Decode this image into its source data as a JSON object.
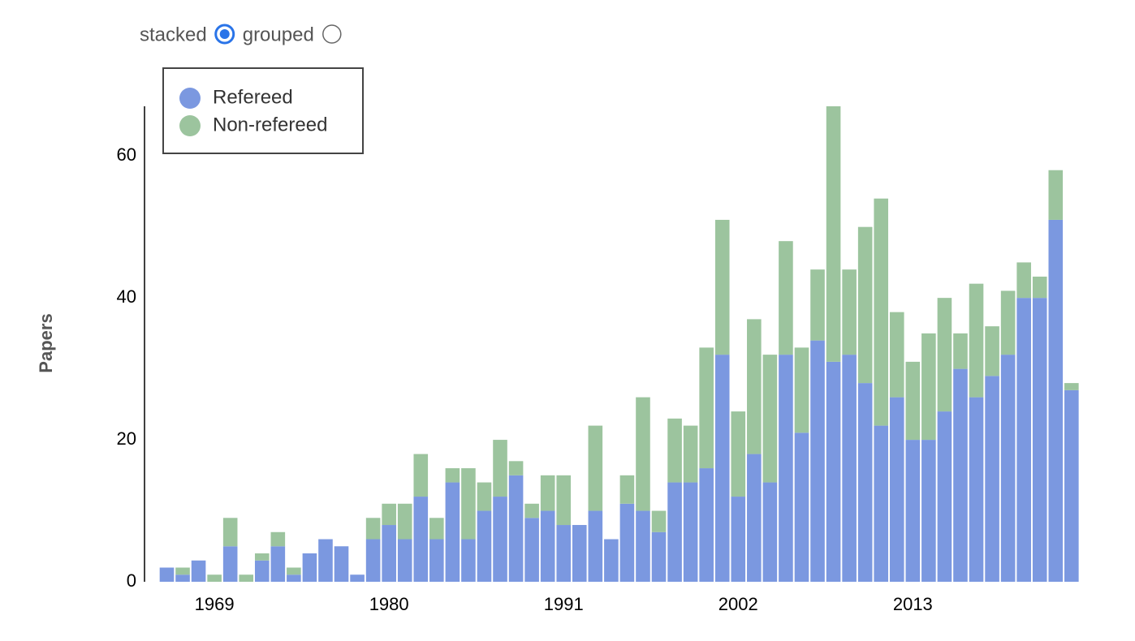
{
  "controls": {
    "options": [
      {
        "label": "stacked",
        "checked": true
      },
      {
        "label": "grouped",
        "checked": false
      }
    ]
  },
  "chart_data": {
    "type": "bar",
    "stacked": true,
    "ylabel": "Papers",
    "categories": [
      null,
      null,
      null,
      "1969",
      null,
      null,
      null,
      null,
      null,
      null,
      null,
      null,
      null,
      null,
      "1980",
      null,
      null,
      null,
      null,
      null,
      null,
      null,
      null,
      null,
      null,
      "1991",
      null,
      null,
      null,
      null,
      null,
      null,
      null,
      null,
      null,
      null,
      "2002",
      null,
      null,
      null,
      null,
      null,
      null,
      null,
      null,
      null,
      null,
      "2013",
      null,
      null,
      null,
      null,
      null,
      null,
      null,
      null,
      null,
      null
    ],
    "series": [
      {
        "name": "Refereed",
        "color": "#7b98e0",
        "values": [
          2,
          1,
          3,
          0,
          5,
          0,
          3,
          5,
          1,
          4,
          6,
          5,
          1,
          6,
          8,
          6,
          12,
          6,
          14,
          6,
          10,
          12,
          15,
          9,
          10,
          8,
          8,
          10,
          6,
          11,
          10,
          7,
          14,
          14,
          16,
          32,
          12,
          18,
          14,
          32,
          21,
          34,
          31,
          32,
          28,
          22,
          26,
          20,
          20,
          24,
          30,
          26,
          29,
          32,
          40,
          40,
          51,
          27
        ]
      },
      {
        "name": "Non-refereed",
        "color": "#9cc49e",
        "values": [
          0,
          1,
          0,
          1,
          4,
          1,
          1,
          2,
          1,
          0,
          0,
          0,
          0,
          3,
          3,
          5,
          6,
          3,
          2,
          10,
          4,
          8,
          2,
          2,
          5,
          7,
          0,
          12,
          0,
          4,
          16,
          3,
          9,
          8,
          17,
          19,
          12,
          19,
          18,
          16,
          12,
          10,
          36,
          12,
          22,
          32,
          12,
          11,
          15,
          16,
          5,
          16,
          7,
          9,
          5,
          3,
          7,
          1
        ]
      }
    ],
    "ylim": [
      0,
      67
    ],
    "yticks": [
      0,
      20,
      40,
      60
    ],
    "grid": false,
    "legend": "top-left"
  }
}
